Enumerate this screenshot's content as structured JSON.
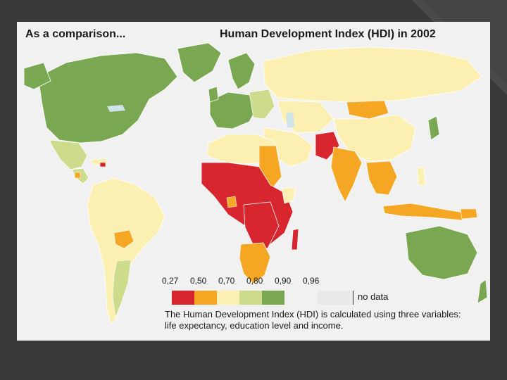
{
  "heading_left": "As a comparison...",
  "heading_right": "Human Development Index (HDI) in 2002",
  "legend": {
    "ticks": [
      "0,27",
      "0,50",
      "0,70",
      "0,80",
      "0,90",
      "0,96"
    ],
    "bins": [
      {
        "from": 0.27,
        "to": 0.5,
        "color": "#d8262e"
      },
      {
        "from": 0.5,
        "to": 0.7,
        "color": "#f5a623"
      },
      {
        "from": 0.7,
        "to": 0.8,
        "color": "#fbf0b2"
      },
      {
        "from": 0.8,
        "to": 0.9,
        "color": "#cddc8c"
      },
      {
        "from": 0.9,
        "to": 0.96,
        "color": "#7aa852"
      }
    ],
    "no_data_color": "#e9e9e9",
    "no_data_label": "no data"
  },
  "note": "The Human Development Index (HDI) is calculated using three variables: life expectancy, education level and income.",
  "colors": {
    "slide_background": "#3a3a3a",
    "map_background": "#f1f1f1",
    "ocean": "#f1f1f1",
    "water": "#cfe3ea"
  }
}
